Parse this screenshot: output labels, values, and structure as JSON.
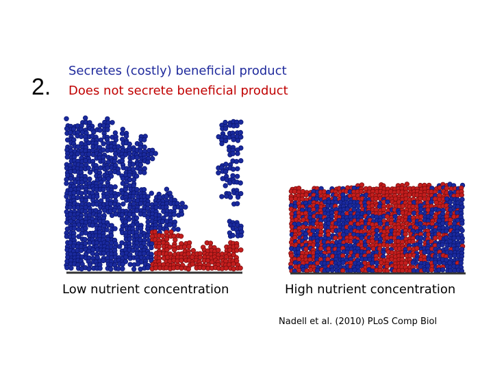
{
  "slide": {
    "number": "2.",
    "legend": [
      "Secretes (costly) beneficial product",
      "Does not secrete beneficial product"
    ],
    "captions": [
      "Low nutrient concentration",
      "High nutrient concentration"
    ],
    "citation": "Nadell et al. (2010) PLoS Comp Biol"
  }
}
